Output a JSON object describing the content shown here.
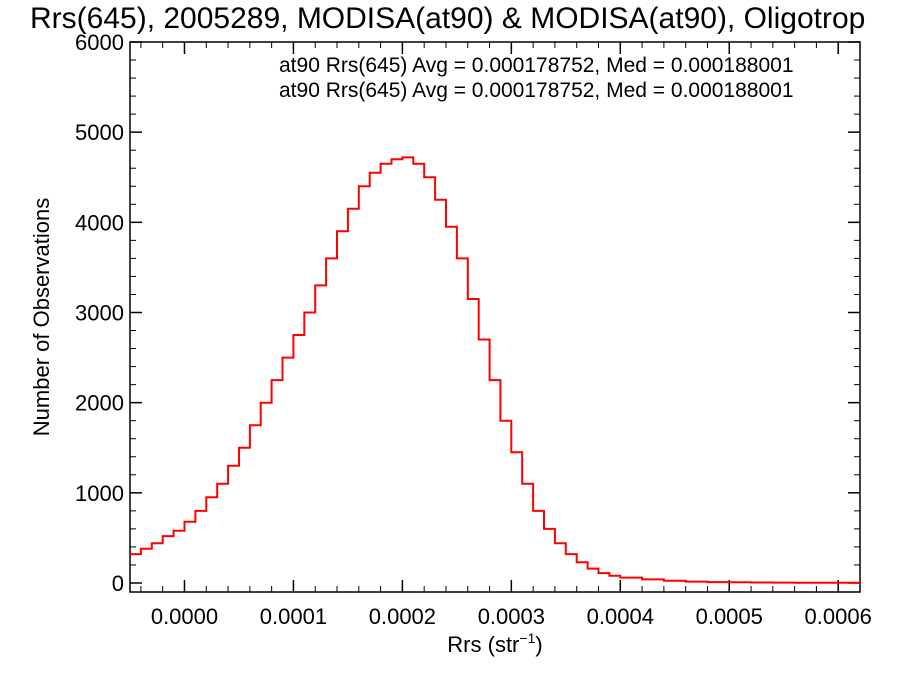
{
  "chart_data": {
    "type": "line",
    "title": "Rrs(645), 2005289, MODISA(at90) & MODISA(at90), Oligotrop",
    "xlabel": "Rrs (str",
    "xlabel_sup": "−1",
    "xlabel_close": ")",
    "ylabel": "Number of Observations",
    "xlim": [
      -5e-05,
      0.00062
    ],
    "ylim": [
      -100,
      6000
    ],
    "x_ticks": [
      0.0,
      0.0001,
      0.0002,
      0.0003,
      0.0004,
      0.0005,
      0.0006
    ],
    "x_tick_labels": [
      "0.0000",
      "0.0001",
      "0.0002",
      "0.0003",
      "0.0004",
      "0.0005",
      "0.0006"
    ],
    "y_ticks": [
      0,
      1000,
      2000,
      3000,
      4000,
      5000,
      6000
    ],
    "y_tick_labels": [
      "0",
      "1000",
      "2000",
      "3000",
      "4000",
      "5000",
      "6000"
    ],
    "grid": false,
    "annotations": [
      {
        "text": "at90 Rrs(645) Avg = 0.000178752, Med = 0.000188001",
        "color": "#000000"
      },
      {
        "text": "at90 Rrs(645) Avg = 0.000178752, Med = 0.000188001",
        "color": "#ff0000"
      }
    ],
    "series": [
      {
        "color": "#ff0000",
        "style": "step",
        "x": [
          -5e-05,
          -4e-05,
          -3e-05,
          -2e-05,
          -1e-05,
          0.0,
          1e-05,
          2e-05,
          3e-05,
          4e-05,
          5e-05,
          6e-05,
          7e-05,
          8e-05,
          9e-05,
          0.0001,
          0.00011,
          0.00012,
          0.00013,
          0.00014,
          0.00015,
          0.00016,
          0.00017,
          0.00018,
          0.00019,
          0.0002,
          0.00021,
          0.00022,
          0.00023,
          0.00024,
          0.00025,
          0.00026,
          0.00027,
          0.00028,
          0.00029,
          0.0003,
          0.00031,
          0.00032,
          0.00033,
          0.00034,
          0.00035,
          0.00036,
          0.00037,
          0.00038,
          0.00039,
          0.0004,
          0.00042,
          0.00044,
          0.00046,
          0.00048,
          0.0005,
          0.00052,
          0.00054,
          0.00056,
          0.00058,
          0.0006,
          0.00062
        ],
        "y": [
          320,
          380,
          440,
          520,
          580,
          680,
          800,
          950,
          1100,
          1300,
          1500,
          1750,
          2000,
          2250,
          2500,
          2750,
          3000,
          3300,
          3600,
          3900,
          4150,
          4400,
          4550,
          4650,
          4700,
          4720,
          4650,
          4500,
          4250,
          3950,
          3600,
          3150,
          2700,
          2250,
          1800,
          1450,
          1100,
          800,
          600,
          440,
          320,
          230,
          160,
          110,
          80,
          60,
          40,
          25,
          15,
          10,
          8,
          5,
          4,
          3,
          3,
          2,
          2
        ]
      }
    ]
  }
}
